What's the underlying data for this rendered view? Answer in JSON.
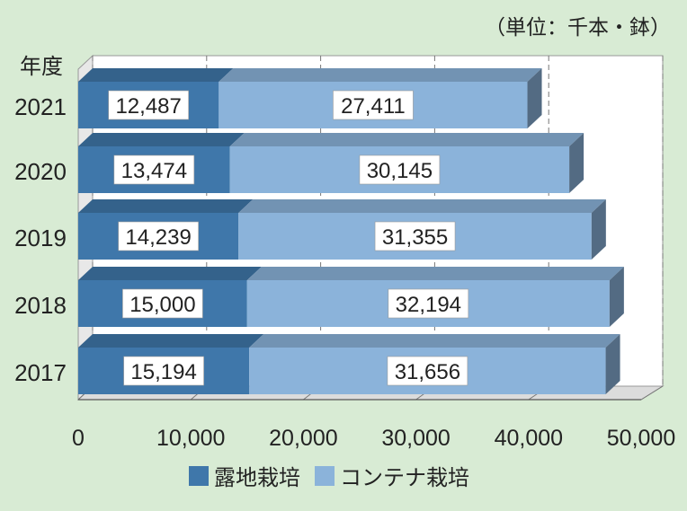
{
  "chart_data": {
    "type": "bar",
    "orientation": "horizontal",
    "stacked": true,
    "three_d": true,
    "unit_note": "（単位：千本・鉢）",
    "y_axis_title": "年度",
    "categories": [
      "2021",
      "2020",
      "2019",
      "2018",
      "2017"
    ],
    "series": [
      {
        "name": "露地栽培",
        "values": [
          12487,
          13474,
          14239,
          15000,
          15194
        ],
        "labels": [
          "12,487",
          "13,474",
          "14,239",
          "15,000",
          "15,194"
        ]
      },
      {
        "name": "コンテナ栽培",
        "values": [
          27411,
          30145,
          31355,
          32194,
          31656
        ],
        "labels": [
          "27,411",
          "30,145",
          "31,355",
          "32,194",
          "31,656"
        ]
      }
    ],
    "xlim": [
      0,
      50000
    ],
    "x_ticks": [
      "0",
      "10,000",
      "20,000",
      "30,000",
      "40,000",
      "50,000"
    ],
    "grid": true,
    "legend_position": "bottom",
    "colors": {
      "background": "#d8ebd4",
      "plot_area": "#ffffff",
      "series1": "#3f77aa",
      "series2": "#8bb3da",
      "gridline": "#777777"
    }
  }
}
